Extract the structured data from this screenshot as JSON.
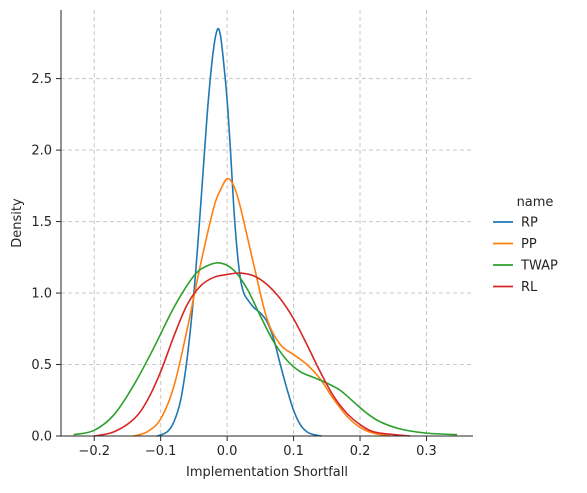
{
  "chart_data": {
    "type": "line",
    "title": "",
    "xlabel": "Implementation Shortfall",
    "ylabel": "Density",
    "xlim": [
      -0.25,
      0.37
    ],
    "ylim": [
      0,
      2.98
    ],
    "x_ticks": [
      -0.2,
      -0.1,
      0.0,
      0.1,
      0.2,
      0.3
    ],
    "x_tick_labels": [
      "−0.2",
      "−0.1",
      "0.0",
      "0.1",
      "0.2",
      "0.3"
    ],
    "y_ticks": [
      0.0,
      0.5,
      1.0,
      1.5,
      2.0,
      2.5
    ],
    "y_tick_labels": [
      "0.0",
      "0.5",
      "1.0",
      "1.5",
      "2.0",
      "2.5"
    ],
    "grid": true,
    "grid_style": "dashed",
    "legend": {
      "title": "name",
      "placement": "right-outside",
      "entries": [
        "RP",
        "PP",
        "TWAP",
        "RL"
      ]
    },
    "series": [
      {
        "name": "RP",
        "color": "#1f77b4",
        "points": [
          [
            -0.105,
            0.0
          ],
          [
            -0.09,
            0.03
          ],
          [
            -0.08,
            0.1
          ],
          [
            -0.07,
            0.25
          ],
          [
            -0.06,
            0.55
          ],
          [
            -0.05,
            1.0
          ],
          [
            -0.04,
            1.6
          ],
          [
            -0.03,
            2.25
          ],
          [
            -0.022,
            2.65
          ],
          [
            -0.015,
            2.84
          ],
          [
            -0.01,
            2.8
          ],
          [
            -0.005,
            2.6
          ],
          [
            0.0,
            2.35
          ],
          [
            0.005,
            2.0
          ],
          [
            0.01,
            1.6
          ],
          [
            0.015,
            1.3
          ],
          [
            0.02,
            1.1
          ],
          [
            0.025,
            1.0
          ],
          [
            0.03,
            0.96
          ],
          [
            0.04,
            0.9
          ],
          [
            0.05,
            0.86
          ],
          [
            0.06,
            0.8
          ],
          [
            0.07,
            0.68
          ],
          [
            0.08,
            0.5
          ],
          [
            0.09,
            0.33
          ],
          [
            0.1,
            0.18
          ],
          [
            0.11,
            0.08
          ],
          [
            0.12,
            0.03
          ],
          [
            0.13,
            0.01
          ],
          [
            0.142,
            0.0
          ]
        ]
      },
      {
        "name": "PP",
        "color": "#ff7f0e",
        "points": [
          [
            -0.14,
            0.0
          ],
          [
            -0.12,
            0.03
          ],
          [
            -0.1,
            0.12
          ],
          [
            -0.08,
            0.35
          ],
          [
            -0.06,
            0.75
          ],
          [
            -0.04,
            1.2
          ],
          [
            -0.02,
            1.6
          ],
          [
            -0.01,
            1.72
          ],
          [
            0.0,
            1.8
          ],
          [
            0.01,
            1.75
          ],
          [
            0.02,
            1.6
          ],
          [
            0.04,
            1.2
          ],
          [
            0.06,
            0.82
          ],
          [
            0.08,
            0.64
          ],
          [
            0.1,
            0.57
          ],
          [
            0.12,
            0.5
          ],
          [
            0.14,
            0.4
          ],
          [
            0.16,
            0.26
          ],
          [
            0.18,
            0.14
          ],
          [
            0.2,
            0.06
          ],
          [
            0.22,
            0.02
          ],
          [
            0.245,
            0.0
          ]
        ]
      },
      {
        "name": "TWAP",
        "color": "#2ca02c",
        "points": [
          [
            -0.23,
            0.01
          ],
          [
            -0.2,
            0.04
          ],
          [
            -0.17,
            0.15
          ],
          [
            -0.14,
            0.36
          ],
          [
            -0.11,
            0.62
          ],
          [
            -0.08,
            0.9
          ],
          [
            -0.05,
            1.12
          ],
          [
            -0.03,
            1.19
          ],
          [
            -0.01,
            1.21
          ],
          [
            0.01,
            1.16
          ],
          [
            0.03,
            1.03
          ],
          [
            0.05,
            0.84
          ],
          [
            0.07,
            0.66
          ],
          [
            0.09,
            0.53
          ],
          [
            0.11,
            0.45
          ],
          [
            0.13,
            0.41
          ],
          [
            0.15,
            0.37
          ],
          [
            0.17,
            0.32
          ],
          [
            0.19,
            0.24
          ],
          [
            0.21,
            0.16
          ],
          [
            0.23,
            0.1
          ],
          [
            0.26,
            0.05
          ],
          [
            0.3,
            0.02
          ],
          [
            0.345,
            0.01
          ]
        ]
      },
      {
        "name": "RL",
        "color": "#d62728",
        "points": [
          [
            -0.2,
            0.0
          ],
          [
            -0.17,
            0.03
          ],
          [
            -0.14,
            0.12
          ],
          [
            -0.12,
            0.25
          ],
          [
            -0.1,
            0.45
          ],
          [
            -0.08,
            0.7
          ],
          [
            -0.06,
            0.92
          ],
          [
            -0.04,
            1.05
          ],
          [
            -0.02,
            1.11
          ],
          [
            0.0,
            1.13
          ],
          [
            0.02,
            1.14
          ],
          [
            0.04,
            1.12
          ],
          [
            0.06,
            1.06
          ],
          [
            0.08,
            0.96
          ],
          [
            0.1,
            0.82
          ],
          [
            0.12,
            0.64
          ],
          [
            0.14,
            0.45
          ],
          [
            0.16,
            0.28
          ],
          [
            0.18,
            0.16
          ],
          [
            0.2,
            0.08
          ],
          [
            0.22,
            0.03
          ],
          [
            0.25,
            0.01
          ],
          [
            0.275,
            0.0
          ]
        ]
      }
    ]
  }
}
